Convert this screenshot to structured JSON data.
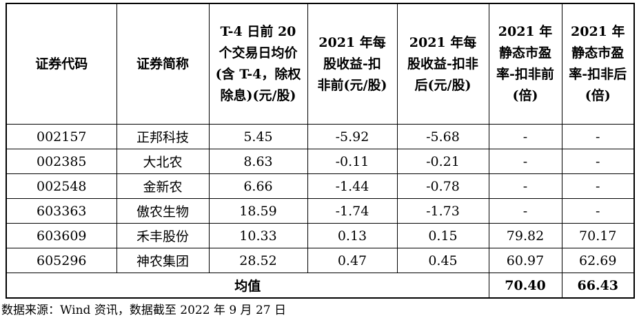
{
  "table": {
    "headers": [
      "证券代码",
      "证券简称",
      "T-4 日前 20 个交易日均价(含 T-4，除权除息)(元/股)",
      "2021 年每股收益-扣非前(元/股)",
      "2021 年每股收益-扣非后(元/股)",
      "2021 年静态市盈率-扣非前(倍)",
      "2021 年静态市盈率-扣非后(倍)"
    ],
    "rows": [
      [
        "002157",
        "正邦科技",
        "5.45",
        "-5.92",
        "-5.68",
        "-",
        "-"
      ],
      [
        "002385",
        "大北农",
        "8.63",
        "-0.11",
        "-0.21",
        "-",
        "-"
      ],
      [
        "002548",
        "金新农",
        "6.66",
        "-1.44",
        "-0.78",
        "-",
        "-"
      ],
      [
        "603363",
        "傲农生物",
        "18.59",
        "-1.74",
        "-1.73",
        "-",
        "-"
      ],
      [
        "603609",
        "禾丰股份",
        "10.33",
        "0.13",
        "0.15",
        "79.82",
        "70.17"
      ],
      [
        "605296",
        "神农集团",
        "28.52",
        "0.47",
        "0.45",
        "60.97",
        "62.69"
      ]
    ],
    "average": {
      "label": "均值",
      "pe_before": "70.40",
      "pe_after": "66.43"
    }
  },
  "source_note": "数据来源：Wind 资讯，数据截至 2022 年 9 月 27 日"
}
